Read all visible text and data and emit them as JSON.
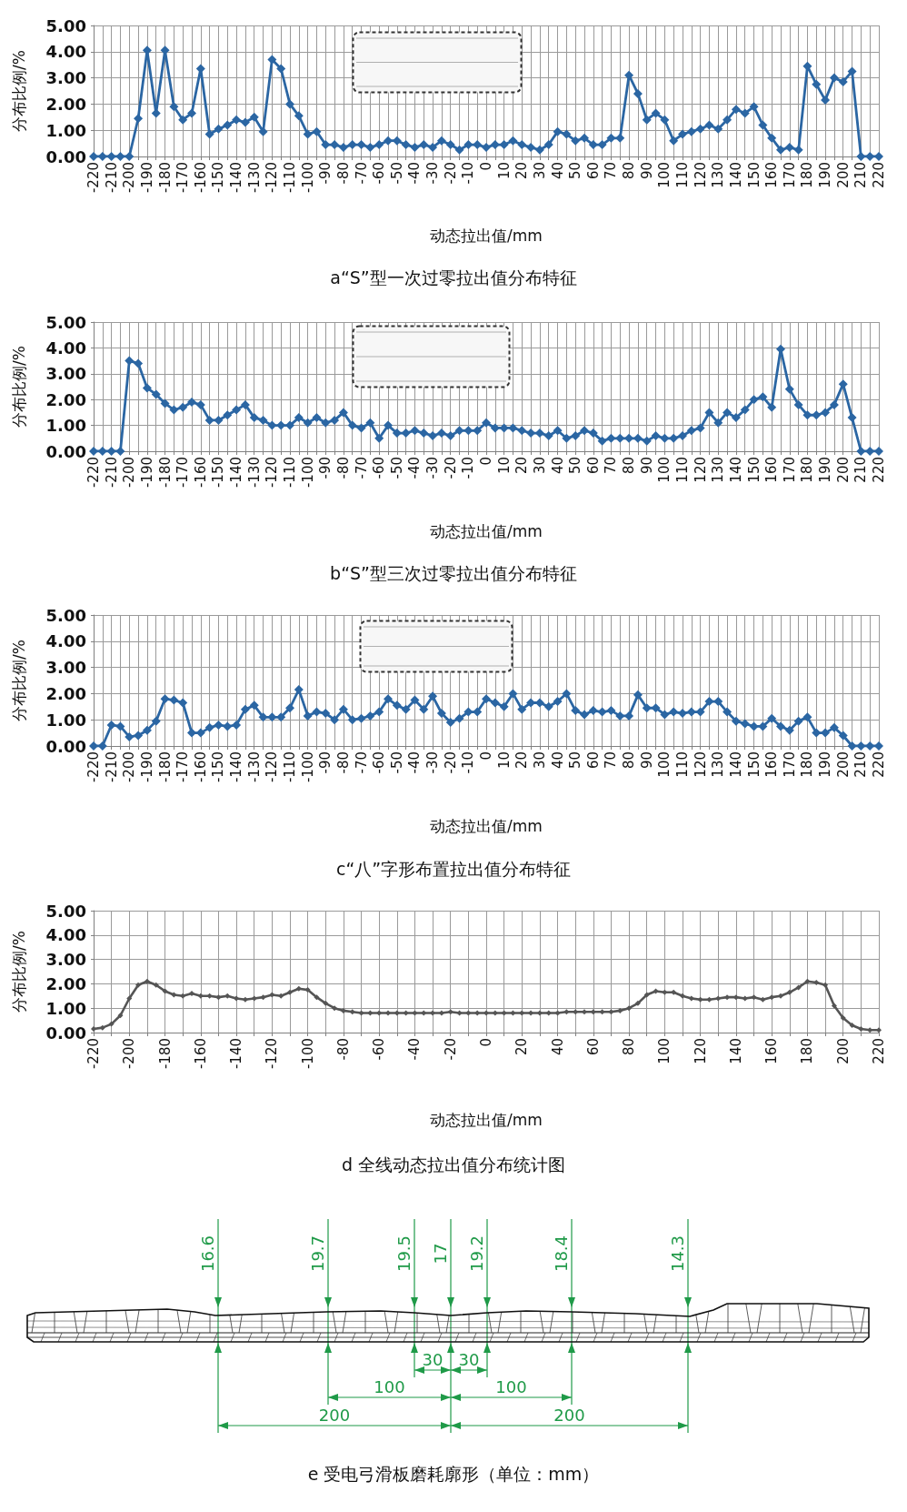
{
  "chart_data": [
    {
      "type": "line",
      "title": "a“S”型一次过零拉出值分布特征",
      "xlabel": "动态拉出值/mm",
      "ylabel": "分布比例/%",
      "x": [
        -220,
        -215,
        -210,
        -205,
        -200,
        -195,
        -190,
        -185,
        -180,
        -175,
        -170,
        -165,
        -160,
        -155,
        -150,
        -145,
        -140,
        -135,
        -130,
        -125,
        -120,
        -115,
        -110,
        -105,
        -100,
        -95,
        -90,
        -85,
        -80,
        -75,
        -70,
        -65,
        -60,
        -55,
        -50,
        -45,
        -40,
        -35,
        -30,
        -25,
        -20,
        -15,
        -10,
        -5,
        0,
        5,
        10,
        15,
        20,
        25,
        30,
        35,
        40,
        45,
        50,
        55,
        60,
        65,
        70,
        75,
        80,
        85,
        90,
        95,
        100,
        105,
        110,
        115,
        120,
        125,
        130,
        135,
        140,
        145,
        150,
        155,
        160,
        165,
        170,
        175,
        180,
        185,
        190,
        195,
        200,
        205,
        210,
        215,
        220
      ],
      "values": [
        0,
        0,
        0,
        0,
        0,
        1.45,
        4.05,
        1.65,
        4.05,
        1.9,
        1.4,
        1.65,
        3.35,
        0.85,
        1.05,
        1.2,
        1.4,
        1.3,
        1.5,
        0.95,
        3.7,
        3.35,
        2.0,
        1.55,
        0.85,
        0.95,
        0.45,
        0.45,
        0.35,
        0.45,
        0.45,
        0.35,
        0.45,
        0.6,
        0.6,
        0.45,
        0.35,
        0.45,
        0.35,
        0.6,
        0.45,
        0.25,
        0.45,
        0.45,
        0.35,
        0.45,
        0.45,
        0.6,
        0.45,
        0.35,
        0.25,
        0.45,
        0.95,
        0.85,
        0.6,
        0.7,
        0.45,
        0.45,
        0.7,
        0.7,
        3.1,
        2.4,
        1.4,
        1.65,
        1.4,
        0.6,
        0.85,
        0.95,
        1.05,
        1.2,
        1.05,
        1.4,
        1.8,
        1.65,
        1.9,
        1.2,
        0.7,
        0.25,
        0.35,
        0.25,
        3.45,
        2.75,
        2.15,
        3.0,
        2.85,
        3.25,
        0,
        0,
        0
      ],
      "color": "#2b66a3",
      "marker": "diamond",
      "grid": true,
      "xlim": [
        -220,
        220
      ],
      "xticks": [
        -220,
        {
          "value": -215,
          "label": null
        },
        -210,
        {
          "value": -205,
          "label": null
        },
        -200,
        {
          "value": -195,
          "label": null
        },
        -190,
        {
          "value": -185,
          "label": null
        },
        -180,
        {
          "value": -175,
          "label": null
        },
        -170,
        {
          "value": -165,
          "label": null
        },
        -160,
        {
          "value": -155,
          "label": null
        },
        -150,
        {
          "value": -145,
          "label": null
        },
        -140,
        {
          "value": -135,
          "label": null
        },
        -130,
        {
          "value": -125,
          "label": null
        },
        -120,
        {
          "value": -115,
          "label": null
        },
        -110,
        {
          "value": -105,
          "label": null
        },
        -100,
        {
          "value": -95,
          "label": null
        },
        -90,
        {
          "value": -85,
          "label": null
        },
        -80,
        {
          "value": -75,
          "label": null
        },
        -70,
        {
          "value": -65,
          "label": null
        },
        -60,
        {
          "value": -55,
          "label": null
        },
        -50,
        {
          "value": -45,
          "label": null
        },
        -40,
        {
          "value": -35,
          "label": null
        },
        -30,
        {
          "value": -25,
          "label": null
        },
        -20,
        {
          "value": -15,
          "label": null
        },
        -10,
        {
          "value": -5,
          "label": null
        },
        0,
        {
          "value": 5,
          "label": null
        },
        10,
        {
          "value": 15,
          "label": null
        },
        20,
        {
          "value": 25,
          "label": null
        },
        30,
        {
          "value": 35,
          "label": null
        },
        40,
        {
          "value": 45,
          "label": null
        },
        50,
        {
          "value": 55,
          "label": null
        },
        60,
        {
          "value": 65,
          "label": null
        },
        70,
        {
          "value": 75,
          "label": null
        },
        80,
        {
          "value": 85,
          "label": null
        },
        90,
        {
          "value": 95,
          "label": null
        },
        100,
        {
          "value": 105,
          "label": null
        },
        110,
        {
          "value": 115,
          "label": null
        },
        120,
        {
          "value": 125,
          "label": null
        },
        130,
        {
          "value": 135,
          "label": null
        },
        140,
        {
          "value": 145,
          "label": null
        },
        150,
        {
          "value": 155,
          "label": null
        },
        160,
        {
          "value": 165,
          "label": null
        },
        170,
        {
          "value": 175,
          "label": null
        },
        180,
        {
          "value": 185,
          "label": null
        },
        190,
        {
          "value": 195,
          "label": null
        },
        200,
        {
          "value": 205,
          "label": null
        },
        210,
        {
          "value": 215,
          "label": null
        },
        220
      ],
      "ylim": [
        0,
        5
      ],
      "yticks": [
        {
          "value": 0,
          "label": "0.00"
        },
        {
          "value": 1,
          "label": "1.00"
        },
        {
          "value": 2,
          "label": "2.00"
        },
        {
          "value": 3,
          "label": "3.00"
        },
        {
          "value": 4,
          "label": "4.00"
        },
        {
          "value": 5,
          "label": "5.00"
        }
      ]
    },
    {
      "type": "line",
      "title": "b“S”型三次过零拉出值分布特征",
      "xlabel": "动态拉出值/mm",
      "ylabel": "分布比例/%",
      "x": [
        -220,
        -215,
        -210,
        -205,
        -200,
        -195,
        -190,
        -185,
        -180,
        -175,
        -170,
        -165,
        -160,
        -155,
        -150,
        -145,
        -140,
        -135,
        -130,
        -125,
        -120,
        -115,
        -110,
        -105,
        -100,
        -95,
        -90,
        -85,
        -80,
        -75,
        -70,
        -65,
        -60,
        -55,
        -50,
        -45,
        -40,
        -35,
        -30,
        -25,
        -20,
        -15,
        -10,
        -5,
        0,
        5,
        10,
        15,
        20,
        25,
        30,
        35,
        40,
        45,
        50,
        55,
        60,
        65,
        70,
        75,
        80,
        85,
        90,
        95,
        100,
        105,
        110,
        115,
        120,
        125,
        130,
        135,
        140,
        145,
        150,
        155,
        160,
        165,
        170,
        175,
        180,
        185,
        190,
        195,
        200,
        205,
        210,
        215,
        220
      ],
      "values": [
        0,
        0,
        0,
        0,
        3.5,
        3.4,
        2.45,
        2.2,
        1.85,
        1.6,
        1.7,
        1.9,
        1.8,
        1.2,
        1.2,
        1.4,
        1.6,
        1.8,
        1.3,
        1.2,
        1.0,
        1.0,
        1.0,
        1.3,
        1.1,
        1.3,
        1.1,
        1.2,
        1.5,
        1.0,
        0.9,
        1.1,
        0.5,
        1.0,
        0.7,
        0.7,
        0.8,
        0.7,
        0.6,
        0.7,
        0.6,
        0.8,
        0.8,
        0.8,
        1.1,
        0.9,
        0.9,
        0.9,
        0.8,
        0.7,
        0.7,
        0.6,
        0.8,
        0.5,
        0.6,
        0.8,
        0.7,
        0.4,
        0.5,
        0.5,
        0.5,
        0.5,
        0.4,
        0.6,
        0.5,
        0.5,
        0.6,
        0.8,
        0.9,
        1.5,
        1.1,
        1.5,
        1.3,
        1.6,
        2.0,
        2.1,
        1.7,
        3.95,
        2.4,
        1.8,
        1.4,
        1.4,
        1.5,
        1.8,
        2.6,
        1.3,
        0,
        0,
        0
      ],
      "color": "#2b66a3",
      "marker": "diamond",
      "grid": true,
      "xlim": [
        -220,
        220
      ],
      "xticks": [
        -220,
        {
          "value": -215,
          "label": null
        },
        -210,
        {
          "value": -205,
          "label": null
        },
        -200,
        {
          "value": -195,
          "label": null
        },
        -190,
        {
          "value": -185,
          "label": null
        },
        -180,
        {
          "value": -175,
          "label": null
        },
        -170,
        {
          "value": -165,
          "label": null
        },
        -160,
        {
          "value": -155,
          "label": null
        },
        -150,
        {
          "value": -145,
          "label": null
        },
        -140,
        {
          "value": -135,
          "label": null
        },
        -130,
        {
          "value": -125,
          "label": null
        },
        -120,
        {
          "value": -115,
          "label": null
        },
        -110,
        {
          "value": -105,
          "label": null
        },
        -100,
        {
          "value": -95,
          "label": null
        },
        -90,
        {
          "value": -85,
          "label": null
        },
        -80,
        {
          "value": -75,
          "label": null
        },
        -70,
        {
          "value": -65,
          "label": null
        },
        -60,
        {
          "value": -55,
          "label": null
        },
        -50,
        {
          "value": -45,
          "label": null
        },
        -40,
        {
          "value": -35,
          "label": null
        },
        -30,
        {
          "value": -25,
          "label": null
        },
        -20,
        {
          "value": -15,
          "label": null
        },
        -10,
        {
          "value": -5,
          "label": null
        },
        0,
        {
          "value": 5,
          "label": null
        },
        10,
        {
          "value": 15,
          "label": null
        },
        20,
        {
          "value": 25,
          "label": null
        },
        30,
        {
          "value": 35,
          "label": null
        },
        40,
        {
          "value": 45,
          "label": null
        },
        50,
        {
          "value": 55,
          "label": null
        },
        60,
        {
          "value": 65,
          "label": null
        },
        70,
        {
          "value": 75,
          "label": null
        },
        80,
        {
          "value": 85,
          "label": null
        },
        90,
        {
          "value": 95,
          "label": null
        },
        100,
        {
          "value": 105,
          "label": null
        },
        110,
        {
          "value": 115,
          "label": null
        },
        120,
        {
          "value": 125,
          "label": null
        },
        130,
        {
          "value": 135,
          "label": null
        },
        140,
        {
          "value": 145,
          "label": null
        },
        150,
        {
          "value": 155,
          "label": null
        },
        160,
        {
          "value": 165,
          "label": null
        },
        170,
        {
          "value": 175,
          "label": null
        },
        180,
        {
          "value": 185,
          "label": null
        },
        190,
        {
          "value": 195,
          "label": null
        },
        200,
        {
          "value": 205,
          "label": null
        },
        210,
        {
          "value": 215,
          "label": null
        },
        220
      ],
      "ylim": [
        0,
        5
      ],
      "yticks": [
        {
          "value": 0,
          "label": "0.00"
        },
        {
          "value": 1,
          "label": "1.00"
        },
        {
          "value": 2,
          "label": "2.00"
        },
        {
          "value": 3,
          "label": "3.00"
        },
        {
          "value": 4,
          "label": "4.00"
        },
        {
          "value": 5,
          "label": "5.00"
        }
      ]
    },
    {
      "type": "line",
      "title": "c“八”字形布置拉出值分布特征",
      "xlabel": "动态拉出值/mm",
      "ylabel": "分布比例/%",
      "x": [
        -220,
        -215,
        -210,
        -205,
        -200,
        -195,
        -190,
        -185,
        -180,
        -175,
        -170,
        -165,
        -160,
        -155,
        -150,
        -145,
        -140,
        -135,
        -130,
        -125,
        -120,
        -115,
        -110,
        -105,
        -100,
        -95,
        -90,
        -85,
        -80,
        -75,
        -70,
        -65,
        -60,
        -55,
        -50,
        -45,
        -40,
        -35,
        -30,
        -25,
        -20,
        -15,
        -10,
        -5,
        0,
        5,
        10,
        15,
        20,
        25,
        30,
        35,
        40,
        45,
        50,
        55,
        60,
        65,
        70,
        75,
        80,
        85,
        90,
        95,
        100,
        105,
        110,
        115,
        120,
        125,
        130,
        135,
        140,
        145,
        150,
        155,
        160,
        165,
        170,
        175,
        180,
        185,
        190,
        195,
        200,
        205,
        210,
        215,
        220
      ],
      "values": [
        0,
        0,
        0.8,
        0.75,
        0.35,
        0.4,
        0.6,
        0.95,
        1.8,
        1.75,
        1.65,
        0.5,
        0.5,
        0.7,
        0.8,
        0.75,
        0.8,
        1.4,
        1.55,
        1.1,
        1.1,
        1.1,
        1.45,
        2.15,
        1.15,
        1.3,
        1.25,
        1.0,
        1.4,
        1.0,
        1.05,
        1.15,
        1.3,
        1.8,
        1.55,
        1.4,
        1.75,
        1.4,
        1.9,
        1.25,
        0.9,
        1.05,
        1.3,
        1.3,
        1.8,
        1.65,
        1.5,
        2.0,
        1.4,
        1.65,
        1.65,
        1.5,
        1.7,
        2.0,
        1.35,
        1.2,
        1.35,
        1.3,
        1.35,
        1.15,
        1.15,
        1.95,
        1.45,
        1.45,
        1.2,
        1.3,
        1.25,
        1.3,
        1.3,
        1.7,
        1.7,
        1.3,
        0.95,
        0.85,
        0.75,
        0.75,
        1.05,
        0.75,
        0.6,
        0.95,
        1.1,
        0.5,
        0.5,
        0.7,
        0.4,
        0,
        0,
        0,
        0
      ],
      "color": "#2b66a3",
      "marker": "diamond",
      "grid": true,
      "xlim": [
        -220,
        220
      ],
      "xticks": [
        -220,
        {
          "value": -215,
          "label": null
        },
        -210,
        {
          "value": -205,
          "label": null
        },
        -200,
        {
          "value": -195,
          "label": null
        },
        -190,
        {
          "value": -185,
          "label": null
        },
        -180,
        {
          "value": -175,
          "label": null
        },
        -170,
        {
          "value": -165,
          "label": null
        },
        -160,
        {
          "value": -155,
          "label": null
        },
        -150,
        {
          "value": -145,
          "label": null
        },
        -140,
        {
          "value": -135,
          "label": null
        },
        -130,
        {
          "value": -125,
          "label": null
        },
        -120,
        {
          "value": -115,
          "label": null
        },
        -110,
        {
          "value": -105,
          "label": null
        },
        -100,
        {
          "value": -95,
          "label": null
        },
        -90,
        {
          "value": -85,
          "label": null
        },
        -80,
        {
          "value": -75,
          "label": null
        },
        -70,
        {
          "value": -65,
          "label": null
        },
        -60,
        {
          "value": -55,
          "label": null
        },
        -50,
        {
          "value": -45,
          "label": null
        },
        -40,
        {
          "value": -35,
          "label": null
        },
        -30,
        {
          "value": -25,
          "label": null
        },
        -20,
        {
          "value": -15,
          "label": null
        },
        -10,
        {
          "value": -5,
          "label": null
        },
        0,
        {
          "value": 5,
          "label": null
        },
        10,
        {
          "value": 15,
          "label": null
        },
        20,
        {
          "value": 25,
          "label": null
        },
        30,
        {
          "value": 35,
          "label": null
        },
        40,
        {
          "value": 45,
          "label": null
        },
        50,
        {
          "value": 55,
          "label": null
        },
        60,
        {
          "value": 65,
          "label": null
        },
        70,
        {
          "value": 75,
          "label": null
        },
        80,
        {
          "value": 85,
          "label": null
        },
        90,
        {
          "value": 95,
          "label": null
        },
        100,
        {
          "value": 105,
          "label": null
        },
        110,
        {
          "value": 115,
          "label": null
        },
        120,
        {
          "value": 125,
          "label": null
        },
        130,
        {
          "value": 135,
          "label": null
        },
        140,
        {
          "value": 145,
          "label": null
        },
        150,
        {
          "value": 155,
          "label": null
        },
        160,
        {
          "value": 165,
          "label": null
        },
        170,
        {
          "value": 175,
          "label": null
        },
        180,
        {
          "value": 185,
          "label": null
        },
        190,
        {
          "value": 195,
          "label": null
        },
        200,
        {
          "value": 205,
          "label": null
        },
        210,
        {
          "value": 215,
          "label": null
        },
        220
      ],
      "ylim": [
        0,
        5
      ],
      "yticks": [
        {
          "value": 0,
          "label": "0.00"
        },
        {
          "value": 1,
          "label": "1.00"
        },
        {
          "value": 2,
          "label": "2.00"
        },
        {
          "value": 3,
          "label": "3.00"
        },
        {
          "value": 4,
          "label": "4.00"
        },
        {
          "value": 5,
          "label": "5.00"
        }
      ]
    },
    {
      "type": "line",
      "title": "d 全线动态拉出值分布统计图",
      "xlabel": "动态拉出值/mm",
      "ylabel": "分布比例/%",
      "x": [
        -220,
        -215,
        -210,
        -205,
        -200,
        -195,
        -190,
        -185,
        -180,
        -175,
        -170,
        -165,
        -160,
        -155,
        -150,
        -145,
        -140,
        -135,
        -130,
        -125,
        -120,
        -115,
        -110,
        -105,
        -100,
        -95,
        -90,
        -85,
        -80,
        -75,
        -70,
        -65,
        -60,
        -55,
        -50,
        -45,
        -40,
        -35,
        -30,
        -25,
        -20,
        -15,
        -10,
        -5,
        0,
        5,
        10,
        15,
        20,
        25,
        30,
        35,
        40,
        45,
        50,
        55,
        60,
        65,
        70,
        75,
        80,
        85,
        90,
        95,
        100,
        105,
        110,
        115,
        120,
        125,
        130,
        135,
        140,
        145,
        150,
        155,
        160,
        165,
        170,
        175,
        180,
        185,
        190,
        195,
        200,
        205,
        210,
        215,
        220
      ],
      "values": [
        0.15,
        0.2,
        0.35,
        0.7,
        1.4,
        1.95,
        2.1,
        1.95,
        1.7,
        1.55,
        1.5,
        1.6,
        1.5,
        1.5,
        1.45,
        1.5,
        1.4,
        1.35,
        1.4,
        1.45,
        1.55,
        1.5,
        1.65,
        1.8,
        1.75,
        1.45,
        1.2,
        1.0,
        0.9,
        0.85,
        0.8,
        0.8,
        0.8,
        0.8,
        0.8,
        0.8,
        0.8,
        0.8,
        0.8,
        0.8,
        0.85,
        0.8,
        0.8,
        0.8,
        0.8,
        0.8,
        0.8,
        0.8,
        0.8,
        0.8,
        0.8,
        0.8,
        0.8,
        0.85,
        0.85,
        0.85,
        0.85,
        0.85,
        0.85,
        0.9,
        1.0,
        1.2,
        1.55,
        1.7,
        1.65,
        1.65,
        1.5,
        1.4,
        1.35,
        1.35,
        1.4,
        1.45,
        1.45,
        1.4,
        1.45,
        1.35,
        1.45,
        1.5,
        1.65,
        1.85,
        2.1,
        2.05,
        1.95,
        1.1,
        0.6,
        0.3,
        0.15,
        0.1,
        0.1
      ],
      "color": "#555555",
      "marker": "diamond",
      "grid": true,
      "xlim": [
        -220,
        220
      ],
      "xticks": [
        -220,
        {
          "value": -210,
          "label": null
        },
        -200,
        {
          "value": -190,
          "label": null
        },
        -180,
        {
          "value": -170,
          "label": null
        },
        -160,
        {
          "value": -150,
          "label": null
        },
        -140,
        {
          "value": -130,
          "label": null
        },
        -120,
        {
          "value": -110,
          "label": null
        },
        -100,
        {
          "value": -90,
          "label": null
        },
        -80,
        {
          "value": -70,
          "label": null
        },
        -60,
        {
          "value": -50,
          "label": null
        },
        -40,
        {
          "value": -30,
          "label": null
        },
        -20,
        {
          "value": -10,
          "label": null
        },
        0,
        {
          "value": 10,
          "label": null
        },
        20,
        {
          "value": 30,
          "label": null
        },
        40,
        {
          "value": 50,
          "label": null
        },
        60,
        {
          "value": 70,
          "label": null
        },
        80,
        {
          "value": 90,
          "label": null
        },
        100,
        {
          "value": 110,
          "label": null
        },
        120,
        {
          "value": 130,
          "label": null
        },
        140,
        {
          "value": 150,
          "label": null
        },
        160,
        {
          "value": 170,
          "label": null
        },
        180,
        {
          "value": 190,
          "label": null
        },
        200,
        {
          "value": 210,
          "label": null
        },
        220
      ],
      "ylim": [
        0,
        5
      ],
      "yticks": [
        {
          "value": 0,
          "label": "0.00"
        },
        {
          "value": 1,
          "label": "1.00"
        },
        {
          "value": 2,
          "label": "2.00"
        },
        {
          "value": 3,
          "label": "3.00"
        },
        {
          "value": 4,
          "label": "4.00"
        },
        {
          "value": 5,
          "label": "5.00"
        }
      ]
    },
    {
      "type": "other",
      "title": "e 受电弓滑板磨耗廓形（单位：mm）",
      "annotations": [
        "16.6",
        "19.7",
        "19.5",
        "17",
        "19.2",
        "18.4",
        "14.3",
        "30",
        "30",
        "100",
        "100",
        "200",
        "200"
      ]
    }
  ]
}
